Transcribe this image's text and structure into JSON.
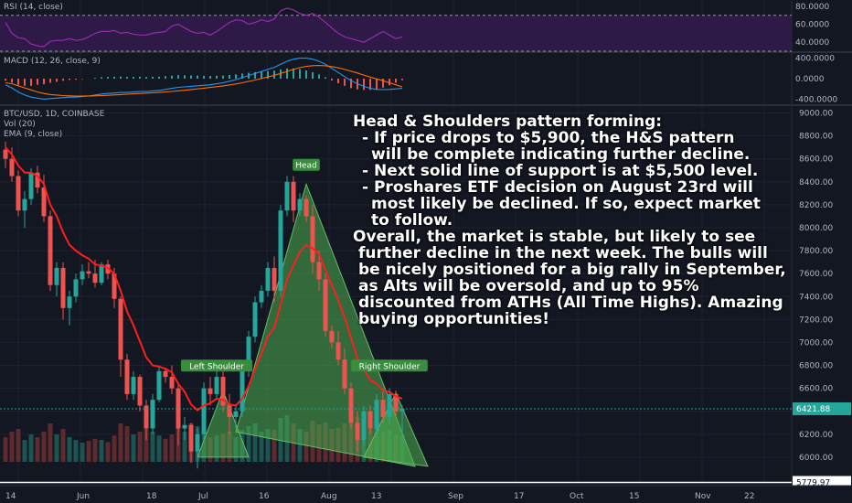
{
  "chart_data": [
    {
      "type": "line",
      "panel": "rsi",
      "title": "RSI (14, close)",
      "y_ticks": [
        "80.0000",
        "60.0000",
        "40.0000"
      ],
      "ylim": [
        30,
        85
      ],
      "band": [
        30,
        70
      ],
      "line_color": "#9c27b0",
      "band_color": "#311b4a",
      "values": [
        62,
        50,
        45,
        44,
        38,
        36,
        35,
        41,
        42,
        42,
        44,
        42,
        43,
        46,
        50,
        52,
        52,
        53,
        50,
        51,
        49,
        48,
        48,
        50,
        51,
        52,
        58,
        60,
        56,
        52,
        50,
        51,
        48,
        52,
        57,
        62,
        65,
        64,
        60,
        62,
        65,
        63,
        66,
        75,
        78,
        76,
        72,
        70,
        72,
        68,
        62,
        56,
        50,
        46,
        44,
        42,
        40,
        44,
        48,
        52,
        48,
        44,
        46
      ]
    },
    {
      "type": "line",
      "panel": "macd",
      "title": "MACD (12, 26, close, 9)",
      "y_ticks": [
        "400.0000",
        "0.0000",
        "-400.0000"
      ],
      "ylim": [
        -500,
        500
      ],
      "series": [
        {
          "color": "#2196f3",
          "values": [
            -120,
            -180,
            -260,
            -320,
            -360,
            -380,
            -400,
            -390,
            -380,
            -370,
            -360,
            -360,
            -350,
            -340,
            -320,
            -300,
            -290,
            -280,
            -270,
            -270,
            -260,
            -250,
            -250,
            -240,
            -230,
            -210,
            -190,
            -170,
            -160,
            -150,
            -140,
            -130,
            -120,
            -100,
            -80,
            -50,
            -20,
            20,
            60,
            100,
            140,
            180,
            220,
            280,
            340,
            380,
            400,
            400,
            380,
            340,
            280,
            200,
            120,
            40,
            -40,
            -100,
            -150,
            -190,
            -210,
            -215,
            -210,
            -200,
            -190
          ]
        },
        {
          "color": "#ff6d00",
          "values": [
            -80,
            -100,
            -140,
            -180,
            -220,
            -260,
            -290,
            -310,
            -320,
            -330,
            -335,
            -340,
            -340,
            -338,
            -335,
            -330,
            -325,
            -318,
            -310,
            -303,
            -296,
            -289,
            -283,
            -276,
            -269,
            -260,
            -250,
            -238,
            -226,
            -213,
            -200,
            -186,
            -172,
            -157,
            -141,
            -123,
            -103,
            -80,
            -54,
            -27,
            2,
            32,
            64,
            101,
            141,
            180,
            215,
            240,
            253,
            258,
            252,
            236,
            210,
            180,
            145,
            110,
            70,
            30,
            -5,
            -40,
            -80,
            -120,
            -160
          ]
        }
      ],
      "histogram_color_neg": "#ef5350",
      "histogram_color_pos": "#26a69a"
    },
    {
      "type": "candlestick",
      "panel": "price",
      "title": "BTC/USD, 1D, COINBASE",
      "legend": [
        "Vol (20)",
        "EMA (9, close)"
      ],
      "ylim": [
        5760,
        9060
      ],
      "y_ticks": [
        "9000.00",
        "8800.00",
        "8600.00",
        "8400.00",
        "8200.00",
        "8000.00",
        "7800.00",
        "7600.00",
        "7400.00",
        "7200.00",
        "7000.00",
        "6800.00",
        "6600.00",
        "6400.00",
        "6200.00",
        "6000.00"
      ],
      "x_ticks": [
        "14",
        "Jun",
        "18",
        "Jul",
        "16",
        "Aug",
        "13",
        "Sep",
        "17",
        "Oct",
        "15",
        "Nov",
        "22"
      ],
      "current_price": "6421.88",
      "support_price": "5779.97",
      "up_color": "#26a69a",
      "down_color": "#ef5350",
      "ema_color": "#ff1e1e",
      "ohlc": [
        [
          8680,
          8750,
          8520,
          8600
        ],
        [
          8600,
          8700,
          8400,
          8450
        ],
        [
          8450,
          8500,
          8100,
          8150
        ],
        [
          8150,
          8320,
          8000,
          8250
        ],
        [
          8250,
          8520,
          8200,
          8480
        ],
        [
          8480,
          8540,
          8300,
          8350
        ],
        [
          8350,
          8460,
          8050,
          8100
        ],
        [
          8100,
          8150,
          7450,
          7500
        ],
        [
          7500,
          7700,
          7400,
          7650
        ],
        [
          7650,
          7700,
          7200,
          7300
        ],
        [
          7300,
          7450,
          7150,
          7400
        ],
        [
          7400,
          7600,
          7350,
          7550
        ],
        [
          7550,
          7680,
          7500,
          7620
        ],
        [
          7620,
          7700,
          7560,
          7600
        ],
        [
          7600,
          7720,
          7480,
          7520
        ],
        [
          7520,
          7700,
          7500,
          7680
        ],
        [
          7680,
          7720,
          7550,
          7600
        ],
        [
          7600,
          7650,
          7300,
          7380
        ],
        [
          7380,
          7400,
          6700,
          6850
        ],
        [
          6850,
          6900,
          6500,
          6550
        ],
        [
          6550,
          6750,
          6500,
          6700
        ],
        [
          6700,
          6720,
          6400,
          6450
        ],
        [
          6450,
          6500,
          6150,
          6250
        ],
        [
          6250,
          6550,
          6200,
          6500
        ],
        [
          6500,
          6800,
          6480,
          6750
        ],
        [
          6750,
          6780,
          6650,
          6700
        ],
        [
          6700,
          6800,
          6550,
          6600
        ],
        [
          6600,
          6650,
          6100,
          6250
        ],
        [
          6250,
          6350,
          6150,
          6280
        ],
        [
          6280,
          6300,
          5950,
          6050
        ],
        [
          6050,
          6250,
          5900,
          6200
        ],
        [
          6200,
          6650,
          6150,
          6600
        ],
        [
          6600,
          6700,
          6450,
          6550
        ],
        [
          6550,
          6750,
          6500,
          6700
        ],
        [
          6700,
          6750,
          6400,
          6450
        ],
        [
          6450,
          6550,
          6200,
          6350
        ],
        [
          6350,
          6450,
          6250,
          6400
        ],
        [
          6400,
          6800,
          6350,
          6750
        ],
        [
          6750,
          7100,
          6700,
          7050
        ],
        [
          7050,
          7400,
          7000,
          7350
        ],
        [
          7350,
          7500,
          7300,
          7450
        ],
        [
          7450,
          7700,
          7400,
          7650
        ],
        [
          7650,
          7750,
          7350,
          7450
        ],
        [
          7450,
          8200,
          7400,
          8150
        ],
        [
          8150,
          8450,
          8100,
          8400
        ],
        [
          8400,
          8450,
          8050,
          8150
        ],
        [
          8150,
          8300,
          8100,
          8250
        ],
        [
          8250,
          8280,
          8050,
          8100
        ],
        [
          8100,
          8200,
          7600,
          7700
        ],
        [
          7700,
          7800,
          7450,
          7550
        ],
        [
          7550,
          7600,
          7050,
          7100
        ],
        [
          7100,
          7150,
          6950,
          7000
        ],
        [
          7000,
          7100,
          6800,
          6850
        ],
        [
          6850,
          6950,
          6550,
          6600
        ],
        [
          6600,
          6650,
          6250,
          6300
        ],
        [
          6300,
          6400,
          6050,
          6150
        ],
        [
          6150,
          6450,
          6100,
          6400
        ],
        [
          6400,
          6450,
          6200,
          6250
        ],
        [
          6250,
          6550,
          6200,
          6500
        ],
        [
          6500,
          6600,
          6300,
          6350
        ],
        [
          6350,
          6600,
          6300,
          6550
        ],
        [
          6550,
          6580,
          6350,
          6400
        ],
        [
          6400,
          6450,
          6200,
          6422
        ]
      ],
      "volume": [
        45,
        55,
        60,
        40,
        50,
        45,
        55,
        70,
        50,
        60,
        45,
        40,
        35,
        38,
        42,
        40,
        36,
        48,
        70,
        65,
        50,
        55,
        60,
        55,
        48,
        42,
        50,
        62,
        55,
        70,
        65,
        58,
        45,
        48,
        52,
        55,
        45,
        58,
        65,
        70,
        55,
        60,
        58,
        80,
        85,
        70,
        60,
        55,
        75,
        68,
        72,
        60,
        62,
        70,
        78,
        82,
        65,
        60,
        62,
        55,
        58,
        50,
        48
      ],
      "ema": [
        8700,
        8640,
        8540,
        8480,
        8480,
        8450,
        8380,
        8200,
        8100,
        7960,
        7850,
        7800,
        7760,
        7730,
        7680,
        7670,
        7650,
        7600,
        7450,
        7270,
        7150,
        7010,
        6870,
        6800,
        6790,
        6770,
        6740,
        6640,
        6570,
        6460,
        6410,
        6450,
        6470,
        6510,
        6500,
        6460,
        6450,
        6510,
        6620,
        6770,
        6900,
        7050,
        7130,
        7330,
        7550,
        7670,
        7790,
        7850,
        7820,
        7770,
        7630,
        7500,
        7370,
        7220,
        7040,
        6860,
        6770,
        6670,
        6640,
        6580,
        6570,
        6530,
        6510
      ],
      "annotations": [
        {
          "label": "Left Shoulder",
          "target": "left-shoulder"
        },
        {
          "label": "Head",
          "target": "head"
        },
        {
          "label": "Right Shoulder",
          "target": "right-shoulder"
        }
      ]
    }
  ],
  "annotation": {
    "title": "Head & Shoulders pattern forming:",
    "bullet1_a": "- If price drops to $5,900, the H&S pattern",
    "bullet1_b": "will be complete indicating further decline.",
    "bullet2": "- Next solid line of support is at $5,500 level.",
    "bullet3_a": "- Proshares ETF decision on August 23rd will",
    "bullet3_b": "most likely be declined. If so, expect market",
    "bullet3_c": "to follow.",
    "para_a": "Overall, the market is stable, but likely to see",
    "para_b": "further decline in the next week. The bulls will",
    "para_c": "be nicely positioned for a big rally in September,",
    "para_d": "as Alts will be oversold, and up to 95%",
    "para_e": "discounted from ATHs (All Time Highs). Amazing",
    "para_f": "buying opportunities!"
  },
  "theme": {
    "background": "#131722",
    "grid": "#1e2230",
    "text": "#b2b5be",
    "triangle_fill": "#4caf50",
    "label_bg": "#388e3c"
  }
}
